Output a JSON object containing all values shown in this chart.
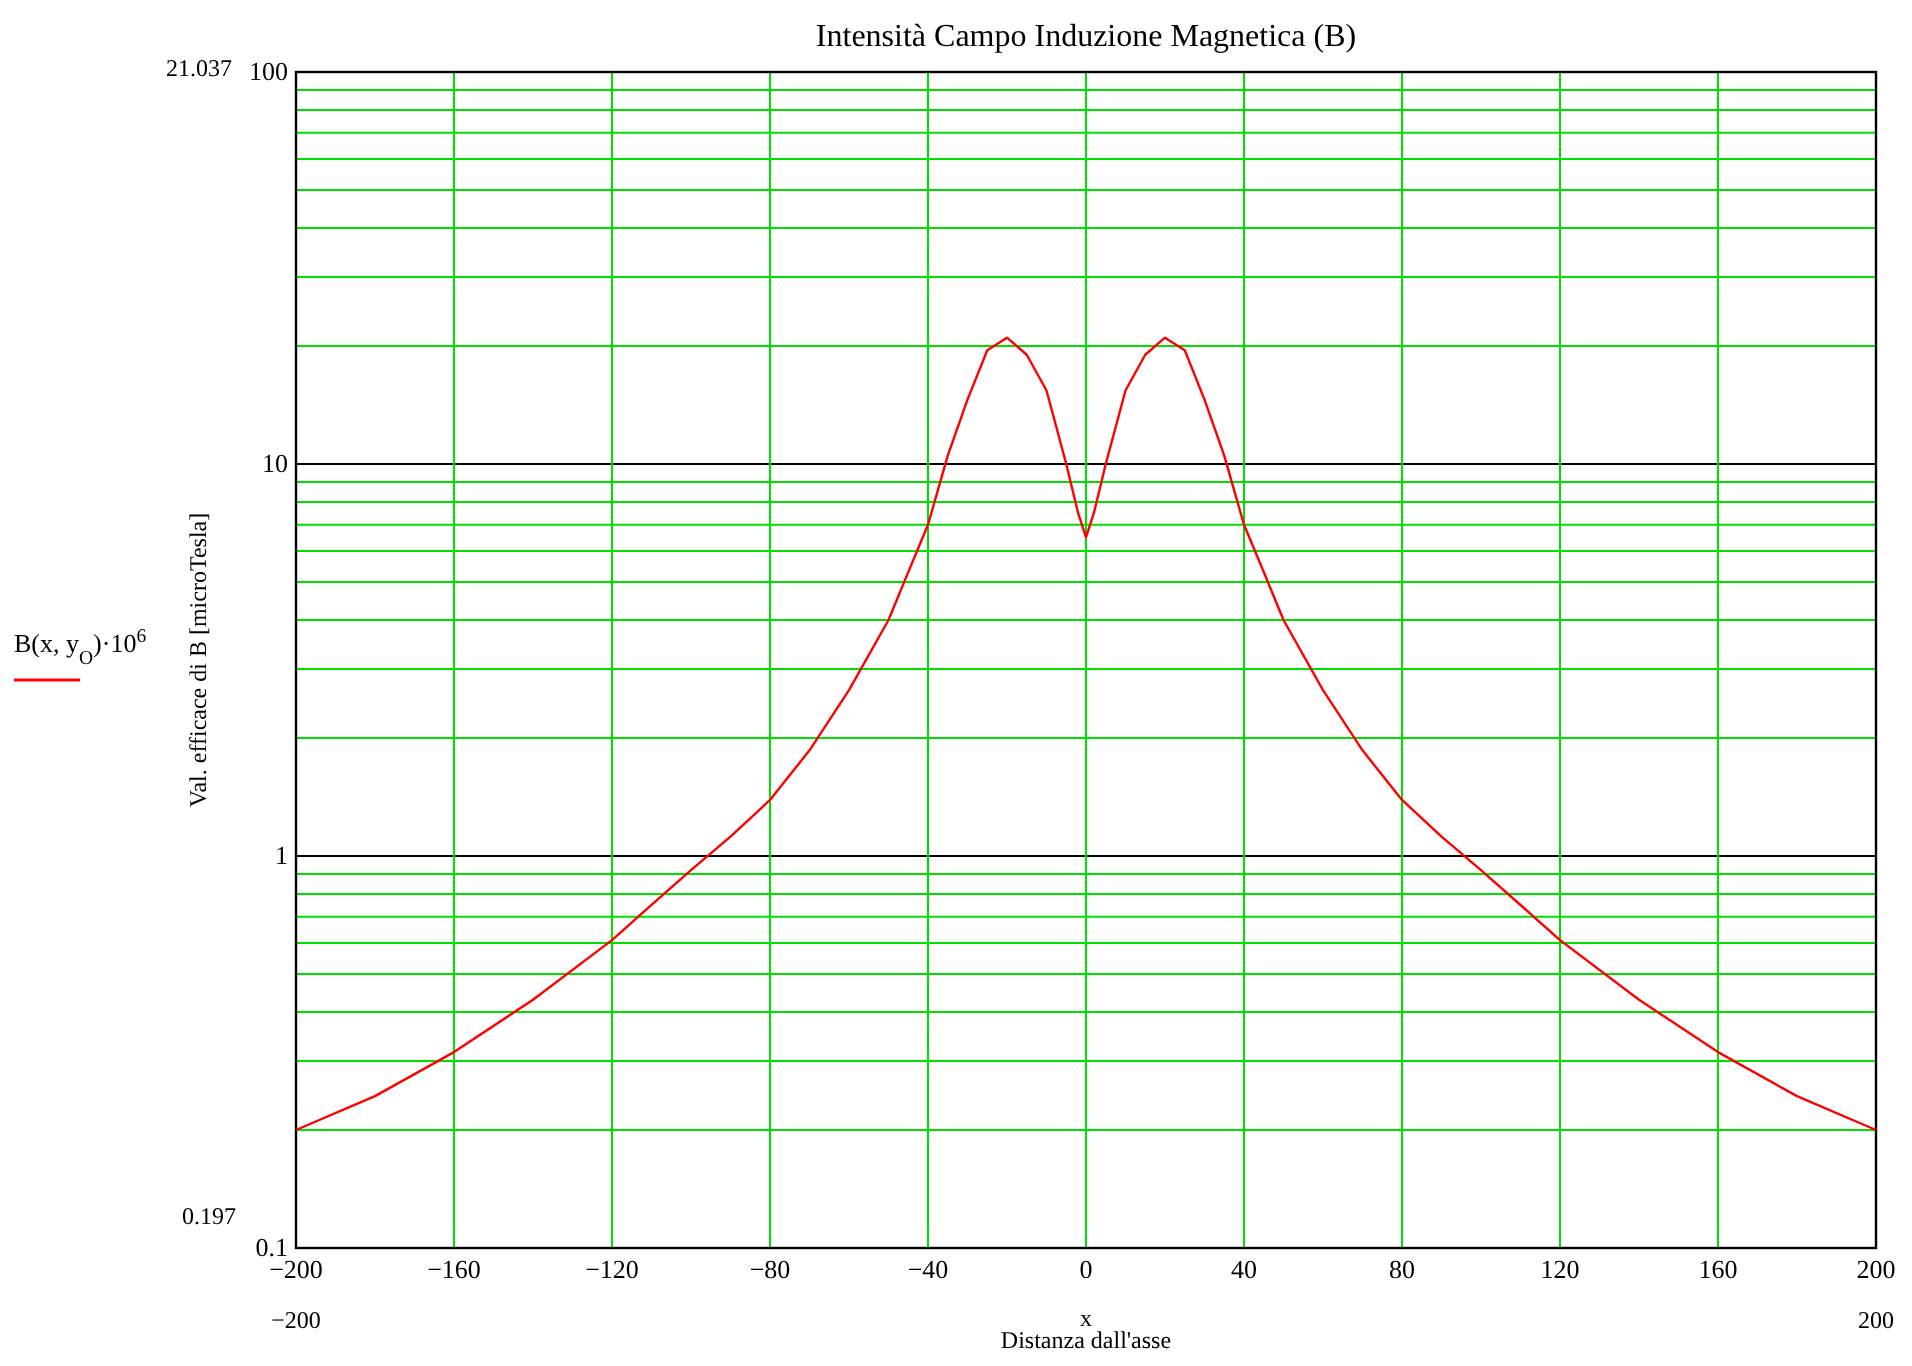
{
  "chart_data": {
    "type": "line",
    "title": "Intensità Campo Induzione Magnetica (B)",
    "xlabel": "x",
    "ylabel": "Val. efficace di B [microTesla]",
    "annotations": [
      "21.037",
      "0.197",
      "−200",
      "200",
      "Distanza dall'asse"
    ],
    "log": "y",
    "grid": true,
    "legend": "left",
    "line_style": "solid",
    "marker": "none",
    "xlim": [
      -200,
      200
    ],
    "xticks": [
      -200,
      -160,
      -120,
      -80,
      -40,
      0,
      40,
      80,
      120,
      160,
      200
    ],
    "ylim": [
      0.1,
      100
    ],
    "yticks": [
      0.1,
      {
        "value": 0.2,
        "label": null
      },
      {
        "value": 0.3,
        "label": null
      },
      {
        "value": 0.4,
        "label": null
      },
      {
        "value": 0.5,
        "label": null
      },
      {
        "value": 0.6,
        "label": null
      },
      {
        "value": 0.7,
        "label": null
      },
      {
        "value": 0.8,
        "label": null
      },
      {
        "value": 0.9,
        "label": null
      },
      1,
      {
        "value": 2,
        "label": null
      },
      {
        "value": 3,
        "label": null
      },
      {
        "value": 4,
        "label": null
      },
      {
        "value": 5,
        "label": null
      },
      {
        "value": 6,
        "label": null
      },
      {
        "value": 7,
        "label": null
      },
      {
        "value": 8,
        "label": null
      },
      {
        "value": 9,
        "label": null
      },
      10,
      {
        "value": 20,
        "label": null
      },
      {
        "value": 30,
        "label": null
      },
      {
        "value": 40,
        "label": null
      },
      {
        "value": 50,
        "label": null
      },
      {
        "value": 60,
        "label": null
      },
      {
        "value": 70,
        "label": null
      },
      {
        "value": 80,
        "label": null
      },
      {
        "value": 90,
        "label": null
      },
      100
    ],
    "series": [
      {
        "name": "B(x, y$_{O}$)·10$^{6}$",
        "color": "#ff0000",
        "x": [
          -200,
          -180,
          -160,
          -140,
          -120,
          -110,
          -100,
          -90,
          -80,
          -70,
          -60,
          -50,
          -45,
          -40,
          -35,
          -30,
          -25,
          -20,
          -15,
          -10,
          -5,
          -2,
          0,
          2,
          5,
          10,
          15,
          20,
          25,
          30,
          35,
          40,
          45,
          50,
          60,
          70,
          80,
          90,
          100,
          110,
          120,
          140,
          160,
          180,
          200
        ],
        "values": [
          0.2,
          0.244,
          0.316,
          0.43,
          0.61,
          0.75,
          0.92,
          1.12,
          1.39,
          1.86,
          2.65,
          4.0,
          5.3,
          7.0,
          10.5,
          14.6,
          19.5,
          21.0,
          19.0,
          15.4,
          10,
          7.5,
          6.5,
          7.5,
          10,
          15.4,
          19.0,
          21.0,
          19.5,
          14.6,
          10.5,
          7.0,
          5.3,
          4.0,
          2.65,
          1.86,
          1.39,
          1.12,
          0.92,
          0.75,
          0.61,
          0.43,
          0.316,
          0.244,
          0.2
        ]
      }
    ]
  }
}
